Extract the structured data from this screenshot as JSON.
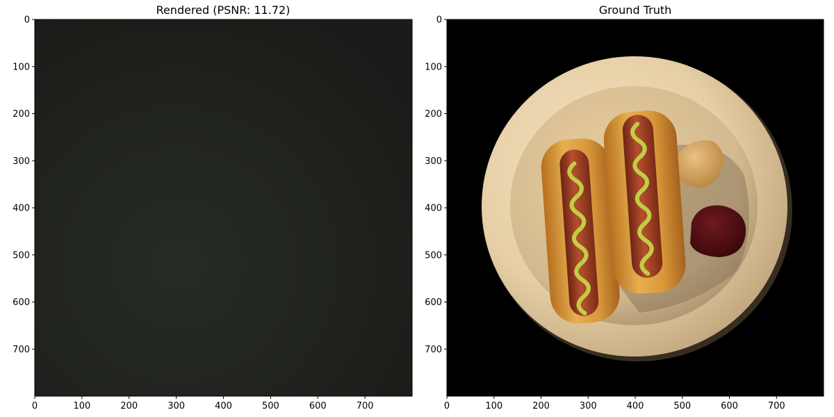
{
  "chart_data": [
    {
      "type": "image",
      "title": "Rendered (PSNR: 11.72)",
      "psnr": 11.72,
      "xlim": [
        0,
        800
      ],
      "ylim": [
        800,
        0
      ],
      "x_ticks": [
        0,
        100,
        200,
        300,
        400,
        500,
        600,
        700
      ],
      "y_ticks": [
        0,
        100,
        200,
        300,
        400,
        500,
        600,
        700
      ],
      "image_description": "uniform very dark gray-green render",
      "colors": {
        "center": "#262b25",
        "edge": "#1b1c19"
      }
    },
    {
      "type": "image",
      "title": "Ground Truth",
      "xlim": [
        0,
        800
      ],
      "ylim": [
        800,
        0
      ],
      "x_ticks": [
        0,
        100,
        200,
        300,
        400,
        500,
        600,
        700
      ],
      "y_ticks": [
        0,
        100,
        200,
        300,
        400,
        500,
        600,
        700
      ],
      "image_description": "top-down view of two hot dogs with mustard on a cream plate with mustard and ketchup dollops, black background",
      "colors": {
        "background": "#000000",
        "plate": "#e9d3ad",
        "bun": "#d99a3a",
        "sausage": "#9b3a22",
        "mustard": "#b7c23c",
        "ketchup": "#4a0c10",
        "mustard_dollop": "#d8a75f"
      }
    }
  ]
}
